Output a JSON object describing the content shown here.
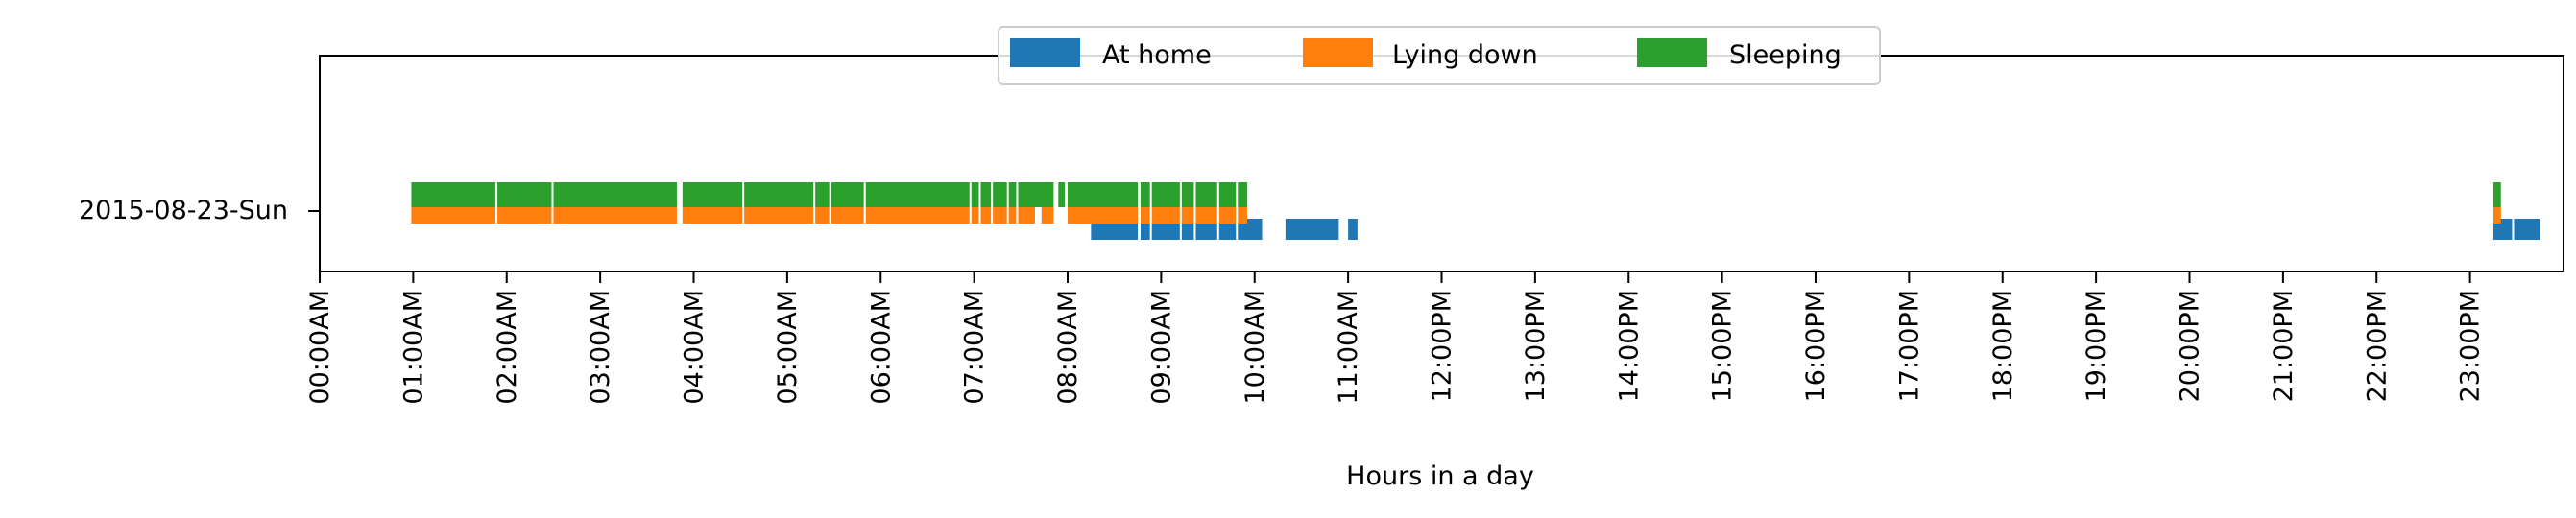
{
  "chart_data": {
    "type": "bar",
    "orientation": "horizontal-timeline",
    "title": "",
    "xlabel": "Hours in a day",
    "ylabel": "",
    "xlim": [
      0,
      24
    ],
    "x_ticks": [
      0,
      1,
      2,
      3,
      4,
      5,
      6,
      7,
      8,
      9,
      10,
      11,
      12,
      13,
      14,
      15,
      16,
      17,
      18,
      19,
      20,
      21,
      22,
      23
    ],
    "x_tick_labels": [
      "00:00AM",
      "01:00AM",
      "02:00AM",
      "03:00AM",
      "04:00AM",
      "05:00AM",
      "06:00AM",
      "07:00AM",
      "08:00AM",
      "09:00AM",
      "10:00AM",
      "11:00AM",
      "12:00PM",
      "13:00PM",
      "14:00PM",
      "15:00PM",
      "16:00PM",
      "17:00PM",
      "18:00PM",
      "19:00PM",
      "20:00PM",
      "21:00PM",
      "22:00PM",
      "23:00PM"
    ],
    "categories": [
      "2015-08-23-Sun"
    ],
    "grid": false,
    "legend": {
      "position": "top-center",
      "columns": 3
    },
    "series": [
      {
        "name": "At home",
        "color": "#1f77b4",
        "intervals": [
          [
            8.25,
            10.08
          ],
          [
            10.33,
            10.9
          ],
          [
            11.0,
            11.1
          ],
          [
            23.25,
            23.75
          ]
        ]
      },
      {
        "name": "Lying down",
        "color": "#ff7f0e",
        "intervals": [
          [
            0.98,
            3.82
          ],
          [
            3.88,
            7.65
          ],
          [
            7.72,
            7.85
          ],
          [
            8.0,
            9.92
          ],
          [
            23.25,
            23.33
          ]
        ]
      },
      {
        "name": "Sleeping",
        "color": "#2ca02c",
        "intervals": [
          [
            0.98,
            3.82
          ],
          [
            3.88,
            7.85
          ],
          [
            7.9,
            7.97
          ],
          [
            8.0,
            9.92
          ],
          [
            23.25,
            23.33
          ]
        ]
      }
    ],
    "gaps": [
      [
        1.88,
        1.9
      ],
      [
        2.48,
        2.5
      ],
      [
        4.52,
        4.54
      ],
      [
        5.28,
        5.3
      ],
      [
        5.45,
        5.47
      ],
      [
        5.82,
        5.84
      ],
      [
        6.95,
        6.97
      ],
      [
        7.05,
        7.07
      ],
      [
        7.18,
        7.2
      ],
      [
        7.35,
        7.37
      ],
      [
        7.45,
        7.47
      ],
      [
        8.75,
        8.78
      ],
      [
        8.88,
        8.9
      ],
      [
        9.2,
        9.22
      ],
      [
        9.35,
        9.37
      ],
      [
        9.6,
        9.62
      ],
      [
        9.8,
        9.82
      ],
      [
        23.45,
        23.47
      ]
    ]
  }
}
